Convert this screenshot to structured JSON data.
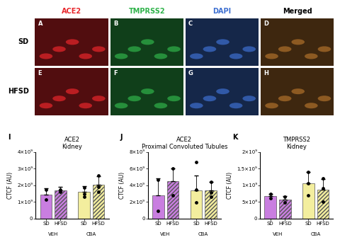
{
  "image_grid": {
    "columns": [
      {
        "label": "ACE2",
        "color": "#e8262b"
      },
      {
        "label": "TMPRSS2",
        "color": "#2fb34a"
      },
      {
        "label": "DAPI",
        "color": "#3d6fd1"
      },
      {
        "label": "Merged",
        "color": "#000000"
      }
    ],
    "rows": [
      "SD",
      "HFSD"
    ],
    "panel_labels": [
      [
        "A",
        "B",
        "C",
        "D"
      ],
      [
        "E",
        "F",
        "G",
        "H"
      ]
    ]
  },
  "chart_data": [
    {
      "type": "bar",
      "panel": "I",
      "title": "ACE2\nKidney",
      "y_label": "CTCF (AU)",
      "categories": [
        "SD",
        "HFSD"
      ],
      "series": [
        {
          "name": "VEH",
          "color": "#c97ee0",
          "values": [
            1450000000.0,
            1700000000.0
          ],
          "errors": [
            350000000.0,
            200000000.0
          ],
          "points": [
            [
              1750000000.0,
              1150000000.0
            ],
            [
              1750000000.0,
              1600000000.0
            ]
          ]
        },
        {
          "name": "CBA",
          "color": "#f3ee9e",
          "values": [
            1600000000.0,
            2050000000.0
          ],
          "errors": [
            350000000.0,
            500000000.0
          ],
          "points": [
            [
              1850000000.0,
              1300000000.0,
              1500000000.0
            ],
            [
              2600000000.0,
              1900000000.0,
              1600000000.0
            ]
          ]
        }
      ],
      "ylim": [
        0,
        4000000000.0
      ],
      "yticks": [
        0,
        {
          "value": 1000000000.0,
          "label": "1×10⁹"
        },
        {
          "value": 2000000000.0,
          "label": "2×10⁹"
        },
        {
          "value": 3000000000.0,
          "label": "3×10⁹"
        },
        {
          "value": 4000000000.0,
          "label": "4×10⁹"
        }
      ]
    },
    {
      "type": "bar",
      "panel": "J",
      "title": "ACE2\nProximal Convoluted Tubules",
      "y_label": "CTCF (AU)",
      "categories": [
        "SD",
        "HFSD"
      ],
      "series": [
        {
          "name": "VEH",
          "color": "#c97ee0",
          "values": [
            2800000000.0,
            4450000000.0
          ],
          "errors": [
            2000000000.0,
            1600000000.0
          ],
          "points": [
            [
              4700000000.0,
              900000000.0
            ],
            [
              6000000000.0,
              2800000000.0
            ]
          ]
        },
        {
          "name": "CBA",
          "color": "#f3ee9e",
          "values": [
            3400000000.0,
            3400000000.0
          ],
          "errors": [
            1800000000.0,
            1000000000.0
          ],
          "points": [
            [
              6800000000.0,
              3500000000.0,
              1900000000.0
            ],
            [
              4400000000.0,
              3100000000.0,
              2600000000.0
            ]
          ]
        }
      ],
      "ylim": [
        0,
        8000000000.0
      ],
      "yticks": [
        0,
        {
          "value": 2000000000.0,
          "label": "2×10⁹"
        },
        {
          "value": 4000000000.0,
          "label": "4×10⁹"
        },
        {
          "value": 6000000000.0,
          "label": "6×10⁹"
        },
        {
          "value": 8000000000.0,
          "label": "8×10⁹"
        }
      ]
    },
    {
      "type": "bar",
      "panel": "K",
      "title": "TMPRSS2\nKidney",
      "y_label": "CTCF (AU)",
      "categories": [
        "SD",
        "HFSD"
      ],
      "series": [
        {
          "name": "VEH",
          "color": "#c97ee0",
          "values": [
            680000000.0,
            570000000.0
          ],
          "errors": [
            70000000.0,
            100000000.0
          ],
          "points": [
            [
              750000000.0,
              620000000.0
            ],
            [
              650000000.0,
              480000000.0
            ]
          ]
        },
        {
          "name": "CBA",
          "color": "#f3ee9e",
          "values": [
            1050000000.0,
            860000000.0
          ],
          "errors": [
            350000000.0,
            330000000.0
          ],
          "points": [
            [
              1400000000.0,
              1050000000.0,
              700000000.0
            ],
            [
              1200000000.0,
              900000000.0,
              500000000.0
            ]
          ]
        }
      ],
      "ylim": [
        0,
        2000000000.0
      ],
      "yticks": [
        0,
        {
          "value": 500000000.0,
          "label": "5×10⁸"
        },
        {
          "value": 1000000000.0,
          "label": "1×10⁹"
        },
        {
          "value": 1500000000.0,
          "label": "1.5×10⁹"
        },
        {
          "value": 2000000000.0,
          "label": "2×10⁹"
        }
      ]
    }
  ]
}
